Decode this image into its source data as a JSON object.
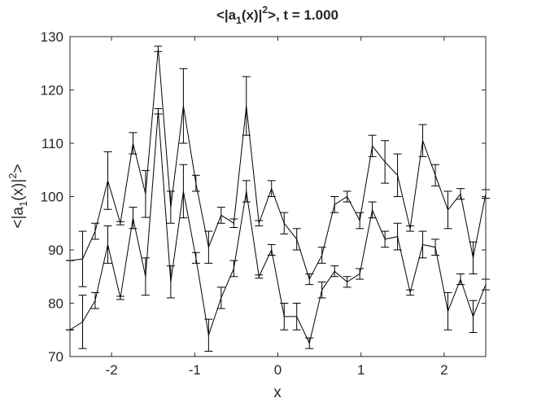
{
  "chart_data": {
    "type": "errorbar",
    "title": [
      "<|a",
      "1",
      "(x)|",
      "2",
      ">, t = 1.000"
    ],
    "x_label": "x",
    "y_label": [
      "<|a",
      "1",
      "(x)|",
      "2",
      ">"
    ],
    "x": [
      -2.5,
      -2.348,
      -2.197,
      -2.045,
      -1.894,
      -1.742,
      -1.591,
      -1.439,
      -1.288,
      -1.136,
      -0.985,
      -0.833,
      -0.682,
      -0.53,
      -0.379,
      -0.227,
      -0.076,
      0.076,
      0.227,
      0.379,
      0.53,
      0.682,
      0.833,
      0.985,
      1.136,
      1.288,
      1.439,
      1.591,
      1.742,
      1.894,
      2.045,
      2.197,
      2.348,
      2.5
    ],
    "series": [
      {
        "color": "#000000",
        "values": [
          88,
          88.3,
          93.5,
          103,
          95,
          110,
          100.5,
          127.7,
          98,
          117,
          102.5,
          90.5,
          96.5,
          95,
          117,
          95,
          101.5,
          95,
          92,
          84.5,
          89,
          98.5,
          100,
          95.5,
          109.5,
          106.5,
          104,
          94,
          110.5,
          104,
          97.5,
          100.5,
          88.5,
          100.5
        ],
        "errors": [
          0,
          5.2,
          1.5,
          5.4,
          0.3,
          2,
          4.4,
          0.5,
          3,
          7,
          1.5,
          3,
          1.5,
          0.8,
          5.5,
          0.5,
          1.5,
          2,
          2,
          1,
          1.5,
          1.5,
          1,
          1.5,
          2,
          4,
          4,
          0.5,
          3,
          2,
          3.5,
          1,
          3,
          0.8
        ]
      },
      {
        "color": "#000000",
        "values": [
          75,
          76.5,
          80.5,
          91,
          81,
          96,
          85,
          116,
          84,
          101,
          88.5,
          74,
          81,
          86.5,
          101,
          85,
          90,
          77.5,
          77.5,
          72.5,
          82.5,
          86,
          84,
          85.5,
          97.5,
          92,
          92.5,
          82,
          91,
          90.5,
          78.5,
          84.5,
          77.5,
          83.5
        ],
        "errors": [
          0,
          5,
          1.5,
          3.5,
          0.3,
          2,
          3.5,
          0.5,
          3,
          5,
          1,
          3,
          2,
          1.5,
          2,
          0.3,
          1,
          2.5,
          2.5,
          1,
          1.5,
          1,
          1,
          1,
          1.5,
          1.5,
          2.5,
          0.5,
          2.5,
          1.5,
          3.5,
          1,
          3,
          1
        ]
      }
    ],
    "xlim": [
      -2.5,
      2.5
    ],
    "xticks": [
      -2,
      -1,
      0,
      1,
      2
    ],
    "ylim": [
      70,
      130
    ],
    "yticks": [
      70,
      80,
      90,
      100,
      110,
      120,
      130
    ],
    "grid": false
  }
}
